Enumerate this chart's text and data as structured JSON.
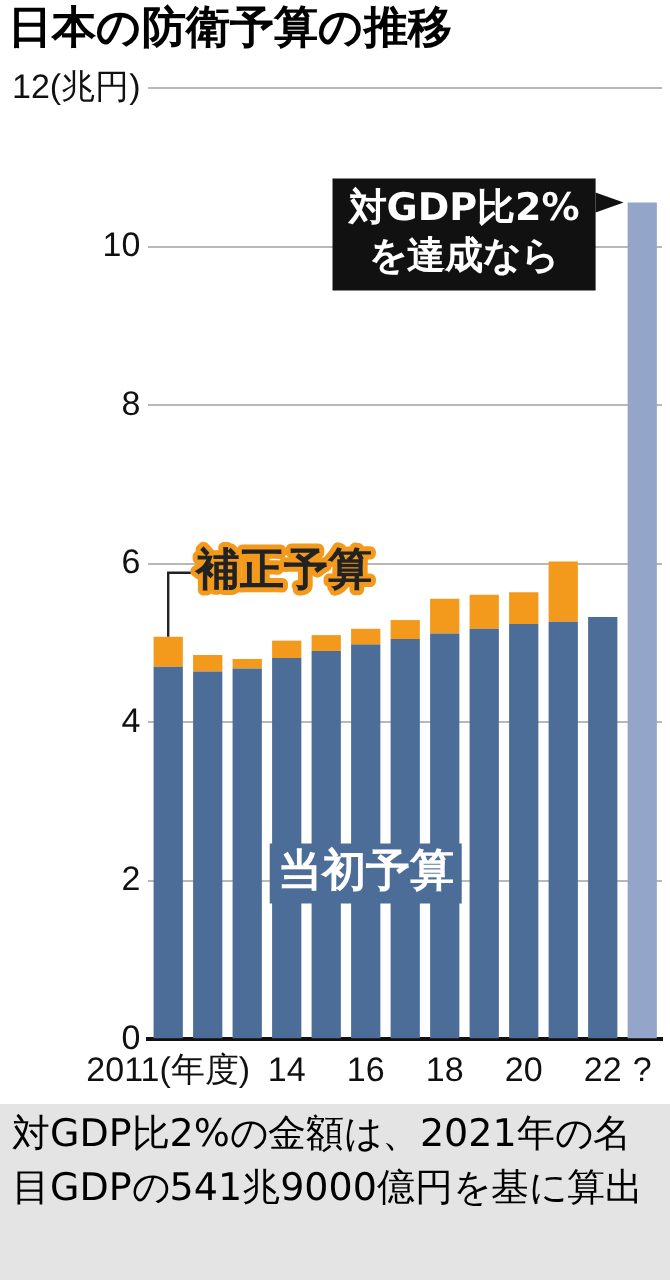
{
  "chart_data": {
    "type": "bar",
    "title": "日本の防衛予算の推移",
    "stacked": true,
    "legend": false,
    "grid": "y",
    "categories": [
      "2011(年度)",
      null,
      null,
      "14",
      null,
      "16",
      null,
      "18",
      null,
      "20",
      null,
      "22",
      "?"
    ],
    "ylim": [
      0,
      12
    ],
    "yticks": [
      0,
      2,
      4,
      6,
      8,
      10,
      {
        "value": 12,
        "label": "12(兆円)"
      }
    ],
    "series": [
      {
        "name": "当初予算",
        "color": "#4d6d99",
        "colors": [
          "#4d6d99",
          "#4d6d99",
          "#4d6d99",
          "#4d6d99",
          "#4d6d99",
          "#4d6d99",
          "#4d6d99",
          "#4d6d99",
          "#4d6d99",
          "#4d6d99",
          "#4d6d99",
          "#4d6d99",
          "#93a6ca"
        ],
        "values": [
          4.7,
          4.64,
          4.68,
          4.81,
          4.9,
          4.98,
          5.05,
          5.12,
          5.18,
          5.24,
          5.27,
          5.33,
          10.56
        ]
      },
      {
        "name": "補正予算",
        "color": "#f39a1c",
        "values": [
          0.38,
          0.21,
          0.12,
          0.22,
          0.2,
          0.2,
          0.24,
          0.44,
          0.43,
          0.4,
          0.76,
          null,
          null
        ]
      }
    ],
    "annotations": [
      {
        "text": "対GDP比2%\nを達成なら",
        "x": "?",
        "y": 10.56
      },
      "対GDP比2%の金額は、2021年の名目GDPの541兆9000億円を基に算出"
    ]
  }
}
